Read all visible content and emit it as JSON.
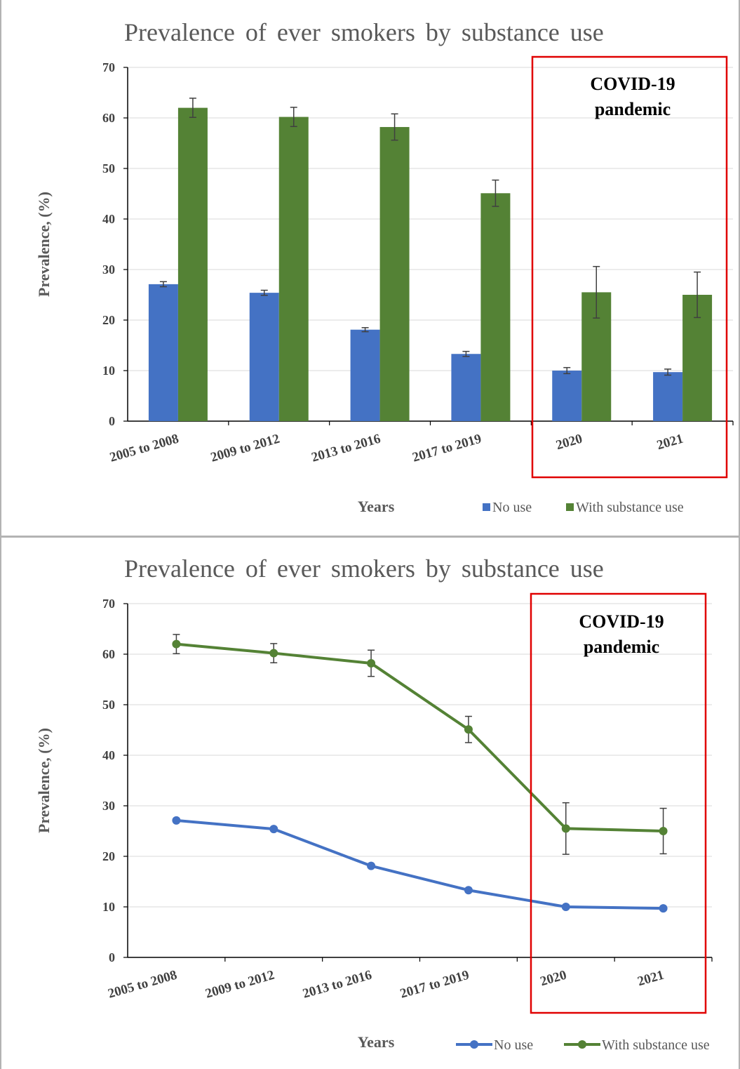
{
  "chart_data": [
    {
      "type": "bar",
      "title": "Prevalence of ever smokers by substance use",
      "xlabel": "Years",
      "ylabel": "Prevalence, (%)",
      "ylim": [
        0,
        70
      ],
      "yticks": [
        "0",
        "10",
        "20",
        "30",
        "40",
        "50",
        "60",
        "70"
      ],
      "grid": true,
      "legend_position": "bottom-right",
      "categories": [
        "2005 to 2008",
        "2009 to 2012",
        "2013 to 2016",
        "2017 to 2019",
        "2020",
        "2021"
      ],
      "series": [
        {
          "name": "No use",
          "color": "#4472C4",
          "values": [
            27.1,
            25.4,
            18.1,
            13.3,
            10.0,
            9.7
          ],
          "error": [
            0.5,
            0.5,
            0.4,
            0.5,
            0.6,
            0.6
          ]
        },
        {
          "name": "With substance use",
          "color": "#548235",
          "values": [
            62.0,
            60.2,
            58.2,
            45.1,
            25.5,
            25.0
          ],
          "error": [
            1.9,
            1.9,
            2.6,
            2.6,
            5.1,
            4.5
          ]
        }
      ],
      "annotation": {
        "line1": "COVID-19",
        "line2": "pandemic",
        "color": "#E00000"
      }
    },
    {
      "type": "line",
      "title": "Prevalence of ever smokers by substance use",
      "xlabel": "Years",
      "ylabel": "Prevalence, (%)",
      "ylim": [
        0,
        70
      ],
      "yticks": [
        "0",
        "10",
        "20",
        "30",
        "40",
        "50",
        "60",
        "70"
      ],
      "grid": true,
      "legend_position": "bottom-right",
      "categories": [
        "2005 to 2008",
        "2009 to 2012",
        "2013 to 2016",
        "2017 to 2019",
        "2020",
        "2021"
      ],
      "series": [
        {
          "name": "No use",
          "color": "#4472C4",
          "values": [
            27.1,
            25.4,
            18.1,
            13.3,
            10.0,
            9.7
          ],
          "error": [
            0,
            0,
            0,
            0,
            0,
            0
          ]
        },
        {
          "name": "With substance use",
          "color": "#548235",
          "values": [
            62.0,
            60.2,
            58.2,
            45.1,
            25.5,
            25.0
          ],
          "error": [
            1.9,
            1.9,
            2.6,
            2.6,
            5.1,
            4.5
          ]
        }
      ],
      "annotation": {
        "line1": "COVID-19",
        "line2": "pandemic",
        "color": "#E00000"
      }
    }
  ]
}
